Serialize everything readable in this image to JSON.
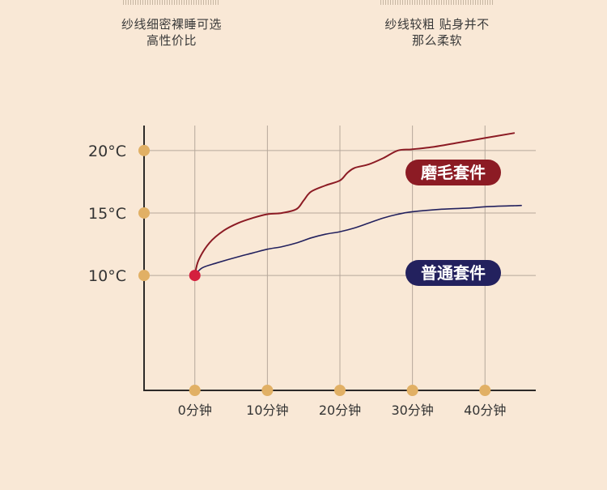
{
  "captions": {
    "left": [
      "纱线细密裸睡可选",
      "高性价比"
    ],
    "right": [
      "纱线较粗 贴身并不",
      "那么柔软"
    ]
  },
  "chart_data": {
    "type": "line",
    "x": [
      0,
      5,
      10,
      15,
      20,
      25,
      30,
      35,
      40,
      44
    ],
    "x_unit": "分钟",
    "ylim": [
      0.8,
      22
    ],
    "xlim": [
      -7,
      47
    ],
    "grid": true,
    "y_ticks": [
      10,
      15,
      20
    ],
    "y_tick_labels": [
      "10°C",
      "15°C",
      "20°C"
    ],
    "x_ticks": [
      0,
      10,
      20,
      30,
      40
    ],
    "x_tick_labels": [
      "0分钟",
      "10分钟",
      "20分钟",
      "30分钟",
      "40分钟"
    ],
    "series": [
      {
        "name": "磨毛套件",
        "color": "#8c1b24",
        "points": [
          [
            0,
            10.0
          ],
          [
            0.5,
            11.2
          ],
          [
            2,
            12.6
          ],
          [
            4,
            13.6
          ],
          [
            6,
            14.2
          ],
          [
            8,
            14.6
          ],
          [
            10,
            14.9
          ],
          [
            12,
            15.0
          ],
          [
            14,
            15.3
          ],
          [
            15,
            16.0
          ],
          [
            16,
            16.7
          ],
          [
            18,
            17.2
          ],
          [
            20,
            17.6
          ],
          [
            21,
            18.2
          ],
          [
            22,
            18.6
          ],
          [
            24,
            18.9
          ],
          [
            26,
            19.4
          ],
          [
            28,
            20.0
          ],
          [
            30,
            20.1
          ],
          [
            33,
            20.3
          ],
          [
            36,
            20.6
          ],
          [
            40,
            21.0
          ],
          [
            44,
            21.4
          ]
        ]
      },
      {
        "name": "普通套件",
        "color": "#23215e",
        "points": [
          [
            0,
            10.0
          ],
          [
            1,
            10.6
          ],
          [
            3,
            11.0
          ],
          [
            6,
            11.5
          ],
          [
            8,
            11.8
          ],
          [
            10,
            12.1
          ],
          [
            12,
            12.3
          ],
          [
            14,
            12.6
          ],
          [
            16,
            13.0
          ],
          [
            18,
            13.3
          ],
          [
            20,
            13.5
          ],
          [
            22,
            13.8
          ],
          [
            24,
            14.2
          ],
          [
            26,
            14.6
          ],
          [
            28,
            14.9
          ],
          [
            30,
            15.1
          ],
          [
            34,
            15.3
          ],
          [
            38,
            15.4
          ],
          [
            40,
            15.5
          ],
          [
            45,
            15.6
          ]
        ]
      }
    ],
    "start_marker": {
      "x": 0,
      "y": 10,
      "color": "#d41f3e"
    }
  },
  "colors": {
    "background": "#f9e8d6",
    "grid": "#b6a89b",
    "axis": "#2d2a28",
    "tick_dot": "#e1b065",
    "label_text": "#ffffff"
  }
}
